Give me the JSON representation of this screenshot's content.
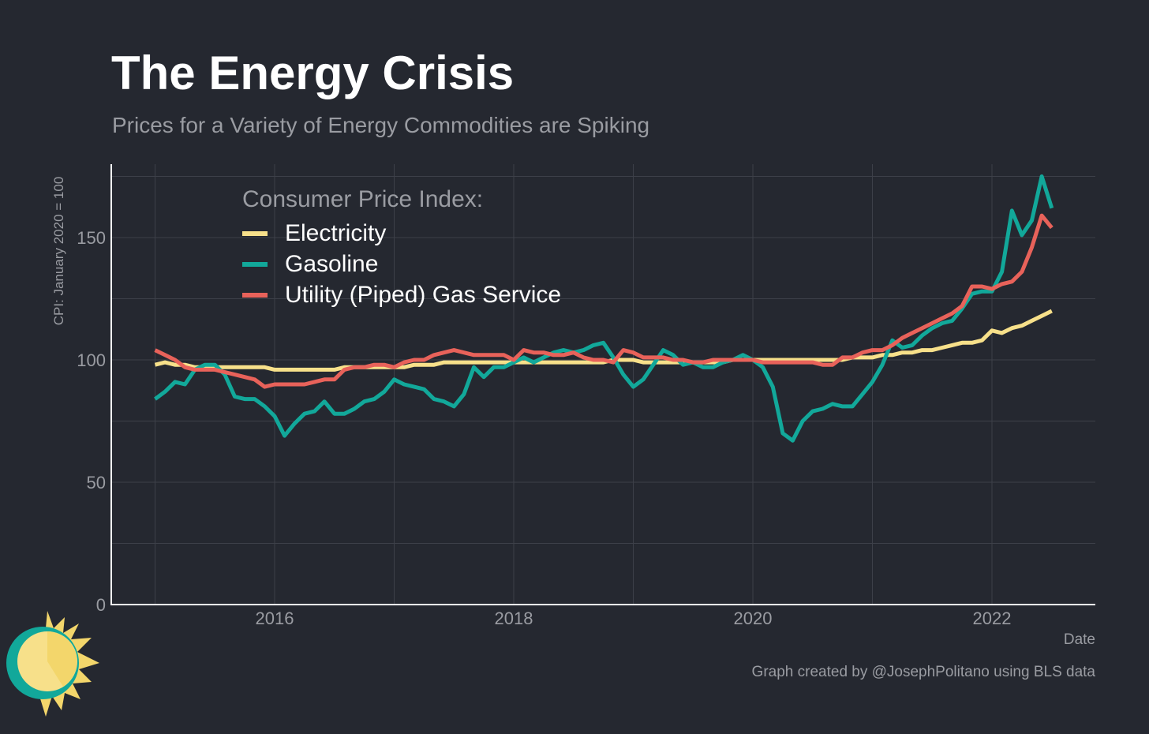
{
  "chart_data": {
    "type": "line",
    "title": "The Energy Crisis",
    "subtitle": "Prices for a Variety of Energy Commodities are Spiking",
    "xlabel": "Date",
    "ylabel": "CPI: January 2020 = 100",
    "xlim": [
      2015,
      2022.65
    ],
    "ylim": [
      0,
      175
    ],
    "x_ticks": [
      2016,
      2018,
      2020,
      2022
    ],
    "x_tick_labels": [
      "2016",
      "2018",
      "2020",
      "2022"
    ],
    "y_ticks": [
      0,
      50,
      100,
      150
    ],
    "y_tick_labels": [
      "0",
      "50",
      "100",
      "150"
    ],
    "grid": true,
    "x_start": "2015-01",
    "frequency": "monthly",
    "legend_title": "Consumer Price Index:",
    "legend_placement": "top-left",
    "series": [
      {
        "name": "Electricity",
        "color": "#f7e08a",
        "values": [
          98,
          99,
          98,
          98,
          97,
          97,
          97,
          97,
          97,
          97,
          97,
          97,
          96,
          96,
          96,
          96,
          96,
          96,
          96,
          97,
          97,
          97,
          97,
          97,
          97,
          97,
          98,
          98,
          98,
          99,
          99,
          99,
          99,
          99,
          99,
          99,
          99,
          99,
          99,
          99,
          99,
          99,
          99,
          99,
          99,
          99,
          100,
          100,
          100,
          99,
          99,
          99,
          99,
          99,
          99,
          99,
          99,
          99,
          100,
          100,
          100,
          100,
          100,
          100,
          100,
          100,
          100,
          100,
          100,
          100,
          101,
          101,
          101,
          102,
          102,
          103,
          103,
          104,
          104,
          105,
          106,
          107,
          107,
          108,
          112,
          111,
          113,
          114,
          116,
          118,
          120
        ]
      },
      {
        "name": "Gasoline",
        "color": "#12a89a",
        "values": [
          84,
          87,
          91,
          90,
          96,
          98,
          98,
          94,
          85,
          84,
          84,
          81,
          77,
          69,
          74,
          78,
          79,
          83,
          78,
          78,
          80,
          83,
          84,
          87,
          92,
          90,
          89,
          88,
          84,
          83,
          81,
          86,
          97,
          93,
          97,
          97,
          99,
          101,
          99,
          101,
          103,
          104,
          103,
          104,
          106,
          107,
          101,
          94,
          89,
          92,
          98,
          104,
          102,
          98,
          99,
          97,
          97,
          99,
          100,
          102,
          100,
          97,
          89,
          70,
          67,
          75,
          79,
          80,
          82,
          81,
          81,
          86,
          91,
          98,
          108,
          105,
          106,
          110,
          113,
          115,
          116,
          121,
          127,
          128,
          128,
          136,
          161,
          151,
          157,
          175,
          162
        ]
      },
      {
        "name": "Utility (Piped) Gas Service",
        "color": "#e8625a",
        "values": [
          104,
          102,
          100,
          97,
          96,
          96,
          96,
          95,
          94,
          93,
          92,
          89,
          90,
          90,
          90,
          90,
          91,
          92,
          92,
          96,
          97,
          97,
          98,
          98,
          97,
          99,
          100,
          100,
          102,
          103,
          104,
          103,
          102,
          102,
          102,
          102,
          100,
          104,
          103,
          103,
          102,
          102,
          103,
          101,
          100,
          100,
          99,
          104,
          103,
          101,
          101,
          101,
          100,
          100,
          99,
          99,
          100,
          100,
          100,
          100,
          100,
          99,
          99,
          99,
          99,
          99,
          99,
          98,
          98,
          101,
          101,
          103,
          104,
          104,
          106,
          109,
          111,
          113,
          115,
          117,
          119,
          122,
          130,
          130,
          129,
          131,
          132,
          136,
          146,
          159,
          154
        ]
      }
    ]
  },
  "caption": "Graph created by @JosephPolitano using BLS data"
}
